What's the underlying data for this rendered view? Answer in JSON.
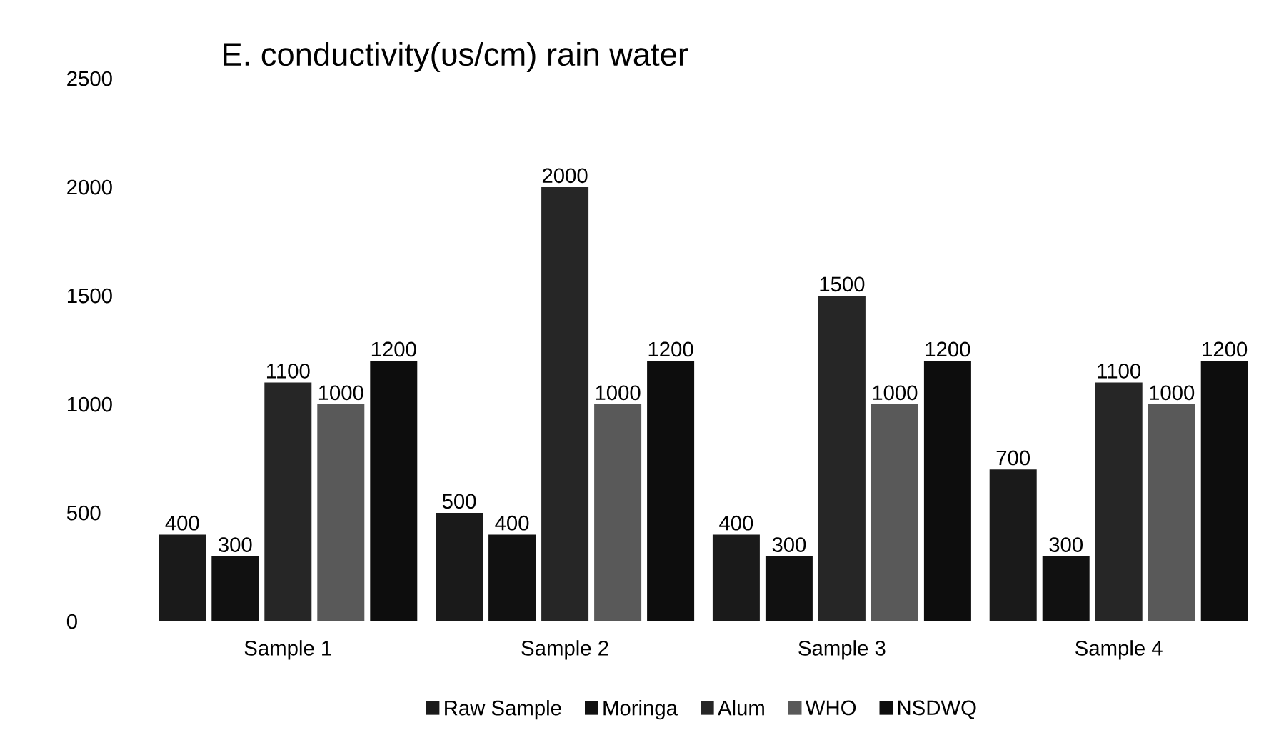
{
  "chart_data": {
    "type": "bar",
    "title": "E. conductivity(υs/cm) rain water",
    "categories": [
      "Sample 1",
      "Sample 2",
      "Sample 3",
      "Sample 4"
    ],
    "series": [
      {
        "name": "Raw Sample",
        "color": "#1a1a1a",
        "values": [
          400,
          500,
          400,
          700
        ]
      },
      {
        "name": "Moringa",
        "color": "#111111",
        "values": [
          300,
          400,
          300,
          300
        ]
      },
      {
        "name": "Alum",
        "color": "#262626",
        "values": [
          1100,
          2000,
          1500,
          1100
        ]
      },
      {
        "name": "WHO",
        "color": "#595959",
        "values": [
          1000,
          1000,
          1000,
          1000
        ]
      },
      {
        "name": "NSDWQ",
        "color": "#0d0d0d",
        "values": [
          1200,
          1200,
          1200,
          1200
        ]
      }
    ],
    "ylim": [
      0,
      2500
    ],
    "yticks": [
      0,
      500,
      1000,
      1500,
      2000,
      2500
    ],
    "data_labels": true,
    "grid": false,
    "legend": "bottom"
  }
}
